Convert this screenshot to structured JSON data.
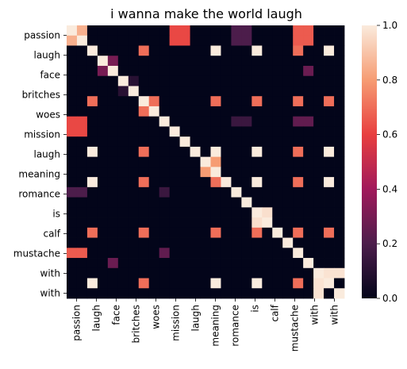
{
  "chart_data": {
    "type": "heatmap",
    "title": "i wanna make the world laugh",
    "x_labels": [
      "passion",
      "laugh",
      "face",
      "britches",
      "woes",
      "mission",
      "laugh",
      "meaning",
      "romance",
      "is",
      "calf",
      "mustache",
      "with",
      "with"
    ],
    "y_labels": [
      "passion",
      "laugh",
      "face",
      "britches",
      "woes",
      "mission",
      "laugh",
      "meaning",
      "romance",
      "is",
      "calf",
      "mustache",
      "with",
      "with"
    ],
    "row_tokens": [
      "passion",
      "passion",
      "laugh",
      "face",
      "face",
      "britches",
      "britches",
      "woes",
      "woes",
      "mission",
      "mission",
      "laugh",
      "laugh",
      "meaning",
      "meaning",
      "romance",
      "romance",
      "is",
      "is",
      "calf",
      "calf",
      "mustache",
      "mustache",
      "with",
      "with",
      "with",
      "with"
    ],
    "values": [
      [
        1.0,
        0.85,
        0,
        0,
        0,
        0,
        0,
        0,
        0,
        0,
        0.62,
        0.62,
        0,
        0,
        0,
        0,
        0.2,
        0.2,
        0,
        0,
        0,
        0,
        0.66,
        0.66,
        0,
        0,
        0
      ],
      [
        0.85,
        1.0,
        0,
        0,
        0,
        0,
        0,
        0,
        0,
        0,
        0.62,
        0.62,
        0,
        0,
        0,
        0,
        0.2,
        0.2,
        0,
        0,
        0,
        0,
        0.66,
        0.66,
        0,
        0,
        0
      ],
      [
        0,
        0,
        1.0,
        0,
        0,
        0,
        0,
        0.7,
        0,
        0,
        0,
        0,
        0,
        0,
        1.0,
        0,
        0,
        0,
        1.0,
        0,
        0,
        0,
        0.7,
        0,
        0,
        1.0,
        0
      ],
      [
        0,
        0,
        0,
        1.0,
        0.3,
        0,
        0,
        0,
        0,
        0,
        0,
        0,
        0,
        0,
        0,
        0,
        0,
        0,
        0,
        0,
        0,
        0,
        0,
        0,
        0,
        0,
        0
      ],
      [
        0,
        0,
        0,
        0.3,
        1.0,
        0,
        0,
        0,
        0,
        0,
        0,
        0,
        0,
        0,
        0,
        0,
        0,
        0,
        0,
        0,
        0,
        0,
        0,
        0.27,
        0,
        0,
        0
      ],
      [
        0,
        0,
        0,
        0,
        0,
        1.0,
        0.1,
        0,
        0,
        0,
        0,
        0,
        0,
        0,
        0,
        0,
        0,
        0,
        0,
        0,
        0,
        0,
        0,
        0,
        0,
        0,
        0
      ],
      [
        0,
        0,
        0,
        0,
        0,
        0.1,
        1.0,
        0,
        0,
        0,
        0,
        0,
        0,
        0,
        0,
        0,
        0,
        0,
        0,
        0,
        0,
        0,
        0,
        0,
        0,
        0,
        0
      ],
      [
        0,
        0,
        0.7,
        0,
        0,
        0,
        0,
        1.0,
        0.7,
        0,
        0,
        0,
        0,
        0,
        0.7,
        0,
        0,
        0,
        0.7,
        0,
        0,
        0,
        0.7,
        0,
        0,
        0.7,
        0
      ],
      [
        0,
        0,
        0,
        0,
        0,
        0,
        0,
        0.7,
        1.0,
        0,
        0,
        0,
        0,
        0,
        0,
        0,
        0,
        0,
        0,
        0,
        0,
        0,
        0,
        0,
        0,
        0,
        0
      ],
      [
        0.62,
        0.62,
        0,
        0,
        0,
        0,
        0,
        0,
        0,
        1.0,
        0,
        0,
        0,
        0,
        0,
        0,
        0.15,
        0.15,
        0,
        0,
        0,
        0,
        0.25,
        0.25,
        0,
        0,
        0
      ],
      [
        0.62,
        0.62,
        0,
        0,
        0,
        0,
        0,
        0,
        0,
        0,
        1.0,
        0,
        0,
        0,
        0,
        0,
        0,
        0,
        0,
        0,
        0,
        0,
        0,
        0,
        0,
        0,
        0
      ],
      [
        0,
        0,
        0,
        0,
        0,
        0,
        0,
        0,
        0,
        0,
        0,
        1.0,
        0,
        0,
        0,
        0,
        0,
        0,
        0,
        0,
        0,
        0,
        0,
        0,
        0,
        0,
        0
      ],
      [
        0,
        0,
        1.0,
        0,
        0,
        0,
        0,
        0.7,
        0,
        0,
        0,
        0,
        1.0,
        0,
        1.0,
        0,
        0,
        0,
        1.0,
        0,
        0,
        0,
        0.7,
        0,
        0,
        1.0,
        0
      ],
      [
        0,
        0,
        0,
        0,
        0,
        0,
        0,
        0,
        0,
        0,
        0,
        0,
        0,
        1.0,
        0.8,
        0,
        0,
        0,
        0,
        0,
        0,
        0,
        0,
        0,
        0,
        0,
        0
      ],
      [
        0,
        0,
        0,
        0,
        0,
        0,
        0,
        0,
        0,
        0,
        0,
        0,
        0,
        0.8,
        1.0,
        0,
        0,
        0,
        0,
        0,
        0,
        0,
        0,
        0,
        0,
        0,
        0
      ],
      [
        0,
        0,
        1.0,
        0,
        0,
        0,
        0,
        0.7,
        0,
        0,
        0,
        0,
        0,
        0,
        0.7,
        1.0,
        0,
        0,
        1.0,
        0,
        0,
        0,
        0.7,
        0,
        0,
        1.0,
        0
      ],
      [
        0.2,
        0.2,
        0,
        0,
        0,
        0,
        0,
        0,
        0,
        0.15,
        0,
        0,
        0,
        0,
        0,
        0,
        1.0,
        0,
        0,
        0,
        0,
        0,
        0,
        0,
        0,
        0,
        0
      ],
      [
        0,
        0,
        0,
        0,
        0,
        0,
        0,
        0,
        0,
        0,
        0,
        0,
        0,
        0,
        0,
        0,
        0,
        1.0,
        0,
        0,
        0,
        0,
        0,
        0,
        0,
        0,
        0
      ],
      [
        0,
        0,
        0,
        0,
        0,
        0,
        0,
        0,
        0,
        0,
        0,
        0,
        0,
        0,
        0,
        0,
        0,
        0,
        1.0,
        0.97,
        0,
        0,
        0,
        0,
        0,
        0,
        0
      ],
      [
        0,
        0,
        0,
        0,
        0,
        0,
        0,
        0,
        0,
        0,
        0,
        0,
        0,
        0,
        0,
        0,
        0,
        0,
        0.97,
        1.0,
        0,
        0,
        0,
        0,
        0,
        0,
        0
      ],
      [
        0,
        0,
        0.7,
        0,
        0,
        0,
        0,
        0.7,
        0,
        0,
        0,
        0,
        0,
        0,
        0.7,
        0,
        0,
        0,
        0.7,
        0,
        1.0,
        0,
        0.7,
        0,
        0,
        0.7,
        0
      ],
      [
        0,
        0,
        0,
        0,
        0,
        0,
        0,
        0,
        0,
        0,
        0,
        0,
        0,
        0,
        0,
        0,
        0,
        0,
        0,
        0,
        0,
        1.0,
        0,
        0,
        0,
        0,
        0
      ],
      [
        0.66,
        0.66,
        0,
        0,
        0,
        0,
        0,
        0,
        0,
        0.25,
        0,
        0,
        0,
        0,
        0,
        0,
        0,
        0,
        0,
        0,
        0,
        0,
        1.0,
        0,
        0,
        0,
        0
      ],
      [
        0,
        0,
        0,
        0,
        0.27,
        0,
        0,
        0,
        0,
        0,
        0,
        0,
        0,
        0,
        0,
        0,
        0,
        0,
        0,
        0,
        0,
        0,
        0,
        1.0,
        0,
        0,
        0
      ],
      [
        0,
        0,
        0,
        0,
        0,
        0,
        0,
        0,
        0,
        0,
        0,
        0,
        0,
        0,
        0,
        0,
        0,
        0,
        0,
        0,
        0,
        0,
        0,
        0,
        1.0,
        0.98,
        0.98
      ],
      [
        0,
        0,
        1.0,
        0,
        0,
        0,
        0,
        0.7,
        0,
        0,
        0,
        0,
        0,
        0,
        1.0,
        0,
        0,
        0,
        1.0,
        0,
        0,
        0,
        0.7,
        0,
        0.98,
        1.0,
        0
      ],
      [
        0,
        0,
        0,
        0,
        0,
        0,
        0,
        0,
        0,
        0,
        0,
        0,
        0,
        0,
        0,
        0,
        0,
        0,
        0,
        0,
        0,
        0,
        0,
        0,
        0.98,
        0,
        1.0
      ]
    ],
    "colorbar_ticks": [
      0.0,
      0.2,
      0.4,
      0.6,
      0.8,
      1.0
    ],
    "colorbar_tick_labels": [
      "0.0",
      "0.2",
      "0.4",
      "0.6",
      "0.8",
      "1.0"
    ],
    "vmin": 0.0,
    "vmax": 1.0,
    "colormap": "rocket",
    "colormap_stops": [
      "#03051a",
      "#4c1d4b",
      "#a11a5b",
      "#e83f3f",
      "#f69c73",
      "#faebdd"
    ],
    "grid": false
  }
}
